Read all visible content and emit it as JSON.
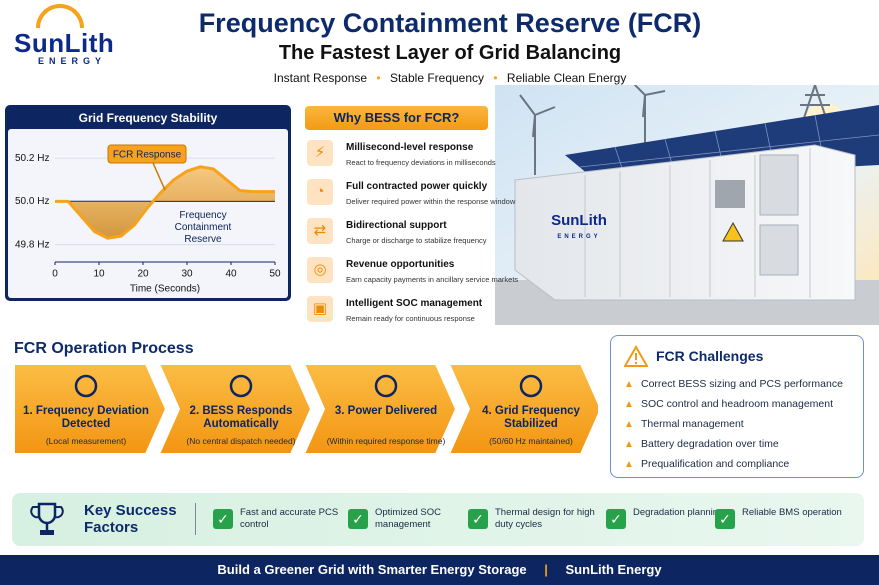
{
  "header": {
    "logo": {
      "name": "SunLith",
      "sub": "ENERGY"
    },
    "title": "Frequency Containment Reserve (FCR)",
    "subtitle": "The Fastest Layer of Grid Balancing",
    "taglines": [
      "Instant Response",
      "Stable Frequency",
      "Reliable Clean Energy"
    ]
  },
  "chart_data": {
    "type": "line",
    "title": "Grid Frequency Stability",
    "x_label": "Time (Seconds)",
    "x": [
      0,
      3,
      6,
      9,
      12,
      15,
      18,
      21,
      24,
      27,
      30,
      33,
      36,
      39,
      42,
      45,
      48,
      50
    ],
    "values": [
      50.0,
      50.0,
      49.93,
      49.86,
      49.83,
      49.84,
      49.89,
      49.97,
      50.04,
      50.1,
      50.14,
      50.16,
      50.15,
      50.1,
      50.05,
      50.045,
      50.045,
      50.045
    ],
    "color": "#f7a21b",
    "xlim": [
      0,
      50
    ],
    "xticks": [
      0,
      10,
      20,
      30,
      40,
      50
    ],
    "ylim": [
      49.72,
      50.33
    ],
    "yticks": [
      {
        "value": 49.8,
        "label": "49.8 Hz"
      },
      {
        "value": 50.0,
        "label": "50.0 Hz"
      },
      {
        "value": 50.2,
        "label": "50.2 Hz"
      }
    ],
    "grid": true,
    "annotations": [
      "FCR Response",
      "Frequency Containment Reserve"
    ]
  },
  "why": {
    "title": "Why BESS for FCR?",
    "items": [
      {
        "title": "Millisecond-level response",
        "desc": "React to frequency deviations in milliseconds"
      },
      {
        "title": "Full contracted power quickly",
        "desc": "Deliver required power within the response window"
      },
      {
        "title": "Bidirectional support",
        "desc": "Charge or discharge to stabilize frequency"
      },
      {
        "title": "Revenue opportunities",
        "desc": "Earn capacity payments in ancillary service markets"
      },
      {
        "title": "Intelligent SOC management",
        "desc": "Remain ready for continuous response"
      }
    ]
  },
  "image": {
    "logo": {
      "name": "SunLith",
      "sub": "ENERGY"
    }
  },
  "process": {
    "title": "FCR Operation Process",
    "steps": [
      {
        "title": "1. Frequency Deviation Detected",
        "sub": "(Local measurement)"
      },
      {
        "title": "2. BESS Responds Automatically",
        "sub": "(No central dispatch needed)"
      },
      {
        "title": "3. Power Delivered",
        "sub": "(Within required response time)"
      },
      {
        "title": "4. Grid Frequency Stabilized",
        "sub": "(50/60 Hz maintained)"
      }
    ]
  },
  "challenges": {
    "title": "FCR Challenges",
    "items": [
      "Correct BESS sizing and PCS performance",
      "SOC control and headroom management",
      "Thermal management",
      "Battery degradation over time",
      "Prequalification and compliance"
    ]
  },
  "success": {
    "title": "Key Success Factors",
    "items": [
      "Fast and accurate PCS control",
      "Optimized SOC management",
      "Thermal design for high duty cycles",
      "Degradation planning",
      "Reliable BMS operation"
    ]
  },
  "footer": {
    "left": "Build a Greener Grid with Smarter Energy Storage",
    "separator": "|",
    "right": "SunLith Energy"
  }
}
